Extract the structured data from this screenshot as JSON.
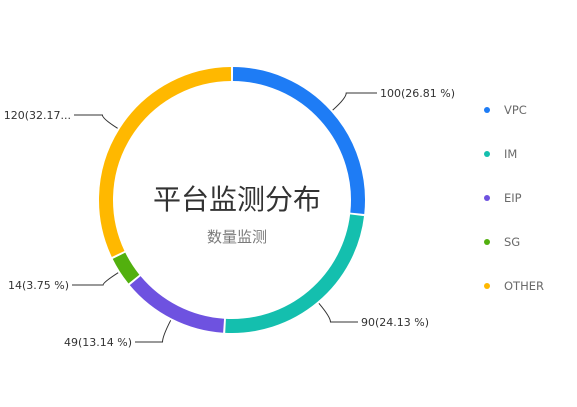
{
  "chart_data": {
    "type": "pie",
    "variant": "donut",
    "title": "平台监测分布",
    "subtitle": "数量监测",
    "colors": {
      "VPC": "#1e7cf5",
      "IM": "#14bfae",
      "EIP": "#6e52e0",
      "SG": "#52b00e",
      "OTHER": "#ffb800"
    },
    "slices": [
      {
        "name": "VPC",
        "value": 100,
        "percent": 26.81,
        "label": "100(26.81 %)"
      },
      {
        "name": "IM",
        "value": 90,
        "percent": 24.13,
        "label": "90(24.13 %)"
      },
      {
        "name": "EIP",
        "value": 49,
        "percent": 13.14,
        "label": "49(13.14 %)"
      },
      {
        "name": "SG",
        "value": 14,
        "percent": 3.75,
        "label": "14(3.75 %)"
      },
      {
        "name": "OTHER",
        "value": 120,
        "percent": 32.17,
        "label": "120(32.17..."
      }
    ],
    "legend": {
      "position": "right",
      "items": [
        "VPC",
        "IM",
        "EIP",
        "SG",
        "OTHER"
      ]
    }
  }
}
